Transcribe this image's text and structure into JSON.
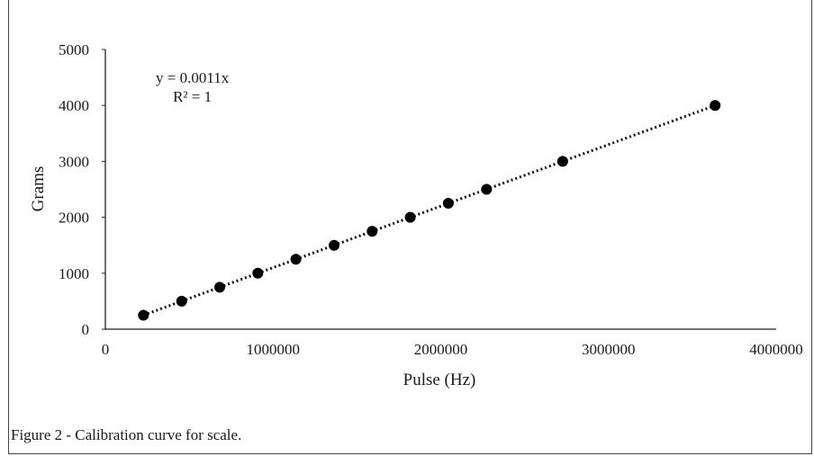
{
  "caption": "Figure 2 - Calibration curve for scale.",
  "trendline": {
    "equation": "y = 0.0011x",
    "r2": "R² = 1",
    "slope": 0.0011,
    "style": "dotted"
  },
  "chart_data": {
    "type": "scatter",
    "xlabel": "Pulse (Hz)",
    "ylabel": "Grams",
    "xlim": [
      0,
      4000000
    ],
    "ylim": [
      0,
      5000
    ],
    "xticks": [
      0,
      1000000,
      2000000,
      3000000,
      4000000
    ],
    "xtick_labels": [
      "0",
      "1000000",
      "2000000",
      "3000000",
      "4000000"
    ],
    "yticks": [
      0,
      1000,
      2000,
      3000,
      4000,
      5000
    ],
    "ytick_labels": [
      "0",
      "1000",
      "2000",
      "3000",
      "4000",
      "5000"
    ],
    "grid": false,
    "series": [
      {
        "marker_color": "#000000",
        "points": [
          {
            "x": 227000,
            "y": 250
          },
          {
            "x": 455000,
            "y": 500
          },
          {
            "x": 682000,
            "y": 750
          },
          {
            "x": 909000,
            "y": 1000
          },
          {
            "x": 1136000,
            "y": 1250
          },
          {
            "x": 1364000,
            "y": 1500
          },
          {
            "x": 1591000,
            "y": 1750
          },
          {
            "x": 1818000,
            "y": 2000
          },
          {
            "x": 2045000,
            "y": 2250
          },
          {
            "x": 2273000,
            "y": 2500
          },
          {
            "x": 2727000,
            "y": 3000
          },
          {
            "x": 3636000,
            "y": 4000
          }
        ]
      }
    ]
  }
}
